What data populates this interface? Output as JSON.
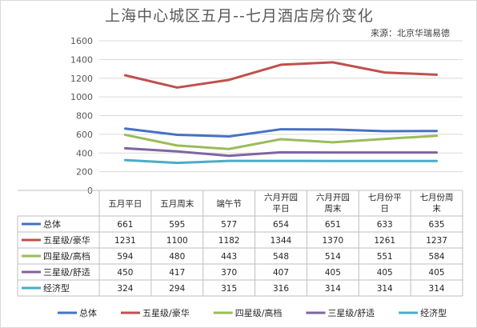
{
  "title": "上海中心城区五月--七月酒店房价变化",
  "source": "来源：北京华瑞易德",
  "colors": {
    "总体": "#4472c4",
    "五星级/豪华": "#c0504d",
    "四星级/高档": "#9bbb59",
    "三星级/舒适": "#8064a2",
    "经济型": "#4bacc6"
  },
  "chart_data": {
    "type": "line",
    "title": "上海中心城区五月--七月酒店房价变化",
    "categories": [
      [
        "五月平日"
      ],
      [
        "五月周末"
      ],
      [
        "端午节"
      ],
      [
        "六月开园",
        "平日"
      ],
      [
        "六月开园",
        "周末"
      ],
      [
        "七月份平",
        "日"
      ],
      [
        "七月份周",
        "末"
      ]
    ],
    "ylim": [
      0,
      1600
    ],
    "yticks": [
      0,
      200,
      400,
      600,
      800,
      1000,
      1200,
      1400,
      1600
    ],
    "grid": true,
    "legend_position": "bottom",
    "data_table": true,
    "series": [
      {
        "name": "总体",
        "values": [
          661,
          595,
          577,
          654,
          651,
          633,
          635
        ]
      },
      {
        "name": "五星级/豪华",
        "values": [
          1231,
          1100,
          1182,
          1344,
          1370,
          1261,
          1237
        ]
      },
      {
        "name": "四星级/高档",
        "values": [
          594,
          480,
          443,
          548,
          514,
          551,
          584
        ]
      },
      {
        "name": "三星级/舒适",
        "values": [
          450,
          417,
          370,
          407,
          405,
          405,
          405
        ]
      },
      {
        "name": "经济型",
        "values": [
          324,
          294,
          315,
          316,
          314,
          314,
          314
        ]
      }
    ]
  }
}
